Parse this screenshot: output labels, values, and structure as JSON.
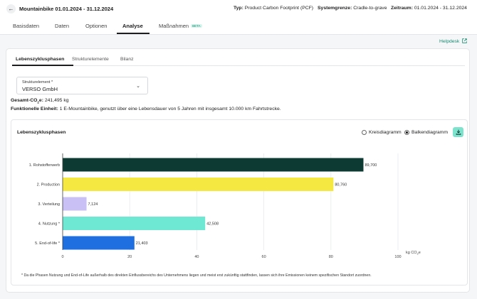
{
  "header": {
    "project_title": "Mountainbike 01.01.2024 - 31.12.2024",
    "type_label": "Typ:",
    "type_value": "Product Carbon Footprint (PCF)",
    "boundary_label": "Systemgrenze:",
    "boundary_value": "Cradle-to-grave",
    "period_label": "Zeitraum:",
    "period_value": "01.01.2024 - 31.12.2024"
  },
  "main_tabs": [
    {
      "label": "Basisdaten"
    },
    {
      "label": "Daten"
    },
    {
      "label": "Optionen"
    },
    {
      "label": "Analyse"
    },
    {
      "label": "Maßnahmen",
      "badge": "BETA"
    }
  ],
  "active_main_tab": "Analyse",
  "helpdesk_label": "Helpdesk",
  "sub_tabs": [
    {
      "label": "Lebenszyklusphasen"
    },
    {
      "label": "Strukturelemente"
    },
    {
      "label": "Bilanz"
    }
  ],
  "active_sub_tab": "Lebenszyklusphasen",
  "structure_select": {
    "label": "Strukturelement *",
    "value": "VERSO GmbH"
  },
  "total": {
    "label_pre": "Gesamt-CO",
    "label_sub": "2",
    "label_post": "e:",
    "value": "241,495 kg"
  },
  "functional_unit": {
    "label": "Funktionelle Einheit:",
    "value": "1 E-Mountainbike, genutzt über eine Lebensdauer von 5 Jahren mit insgesamt 10.000 km Fahrtstrecke."
  },
  "chart_panel": {
    "title": "Lebenszyklusphasen",
    "options": [
      {
        "label": "Kreisdiagramm",
        "checked": false
      },
      {
        "label": "Balkendiagramm",
        "checked": true
      }
    ],
    "download_icon": "download-icon",
    "footnote": "* Da die Phasen Nutzung und End-of-Life außerhalb des direkten Einflussbereichs des Unternehmens liegen und meist erst zukünftig stattfinden, lassen sich ihre Emissionen keinem spezifischen Standort zuordnen."
  },
  "chart_data": {
    "type": "bar",
    "orientation": "horizontal",
    "categories": [
      "1. Rohstofferwerb",
      "2. Production",
      "3. Verteilung",
      "4. Nutzung *",
      "5. End-of-life *"
    ],
    "values": [
      89.7,
      80.76,
      7.124,
      42.508,
      21.403
    ],
    "value_labels": [
      "89,700",
      "80,760",
      "7,124",
      "42,508",
      "21,403"
    ],
    "colors": [
      "#0d3b34",
      "#f4e841",
      "#c9c0f5",
      "#6ee8d2",
      "#1f6fe0"
    ],
    "xlim": [
      0,
      100
    ],
    "xticks": [
      "0",
      "20",
      "40",
      "60",
      "80",
      "100"
    ],
    "xlabel_pre": "kg CO",
    "xlabel_sub": "2",
    "xlabel_post": "e",
    "grid": true
  }
}
